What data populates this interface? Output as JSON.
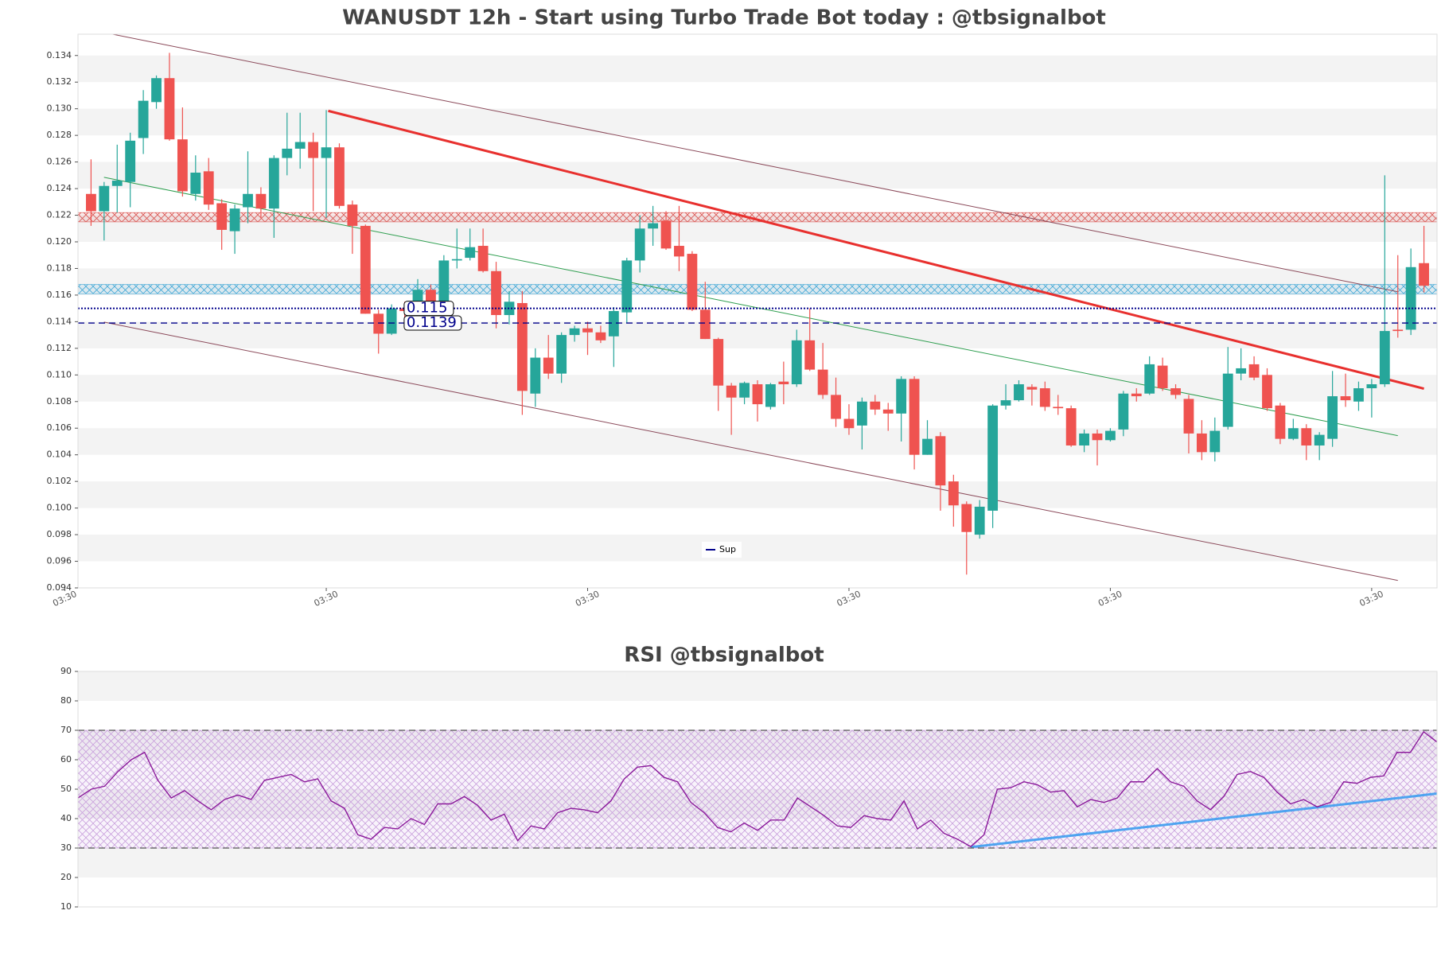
{
  "chart_data": [
    {
      "type": "candlestick",
      "title": "WANUSDT 12h - Start using Turbo Trade Bot today : @tbsignalbot",
      "open": [
        0.1236,
        0.1223,
        0.1242,
        0.1245,
        0.1278,
        0.1305,
        0.1323,
        0.1277,
        0.1236,
        0.1253,
        0.1229,
        0.1208,
        0.1226,
        0.1236,
        0.1225,
        0.1263,
        0.127,
        0.1275,
        0.1263,
        0.1271,
        0.1228,
        0.1212,
        0.1146,
        0.1131,
        0.115,
        0.115,
        0.1164,
        0.1155,
        0.1186,
        0.1188,
        0.1197,
        0.1178,
        0.1145,
        0.1154,
        0.1086,
        0.1113,
        0.1101,
        0.113,
        0.1135,
        0.1132,
        0.1129,
        0.1147,
        0.1186,
        0.121,
        0.1216,
        0.1197,
        0.1191,
        0.1149,
        0.1127,
        0.1092,
        0.1083,
        0.1093,
        0.1076,
        0.1095,
        0.1093,
        0.1126,
        0.1104,
        0.1085,
        0.1067,
        0.1062,
        0.108,
        0.1074,
        0.1071,
        0.1097,
        0.104,
        0.1054,
        0.102,
        0.1003,
        0.098,
        0.0998,
        0.1077,
        0.1081,
        0.1091,
        0.109,
        0.1076,
        0.1075,
        0.1047,
        0.1056,
        0.1051,
        0.1059,
        0.1086,
        0.1086,
        0.1107,
        0.109,
        0.1082,
        0.1056,
        0.1042,
        0.1061,
        0.1101,
        0.1108,
        0.11,
        0.1077,
        0.1052,
        0.106,
        0.1047,
        0.1052,
        0.1084,
        0.108,
        0.109,
        0.1093,
        0.1134,
        0.1134,
        0.1184
      ],
      "high": [
        0.1262,
        0.1245,
        0.1273,
        0.1282,
        0.1314,
        0.1325,
        0.1342,
        0.1301,
        0.1265,
        0.1263,
        0.1232,
        0.1228,
        0.1268,
        0.1241,
        0.1265,
        0.1297,
        0.1297,
        0.1282,
        0.1299,
        0.1274,
        0.1231,
        0.1213,
        0.1149,
        0.1153,
        0.1155,
        0.1172,
        0.1168,
        0.119,
        0.121,
        0.121,
        0.121,
        0.1185,
        0.1163,
        0.1163,
        0.112,
        0.113,
        0.1132,
        0.1137,
        0.114,
        0.1137,
        0.1151,
        0.1188,
        0.122,
        0.1227,
        0.1223,
        0.1227,
        0.1193,
        0.117,
        0.1128,
        0.1094,
        0.1095,
        0.1096,
        0.1094,
        0.111,
        0.1134,
        0.115,
        0.1124,
        0.1098,
        0.1078,
        0.1083,
        0.1085,
        0.1079,
        0.1099,
        0.1099,
        0.1066,
        0.1057,
        0.1025,
        0.1005,
        0.1006,
        0.1078,
        0.1093,
        0.1096,
        0.1093,
        0.1095,
        0.1085,
        0.1077,
        0.1059,
        0.1059,
        0.106,
        0.1088,
        0.109,
        0.1114,
        0.1113,
        0.1093,
        0.1085,
        0.1066,
        0.1068,
        0.1121,
        0.112,
        0.1114,
        0.1105,
        0.1079,
        0.1067,
        0.1063,
        0.1057,
        0.1103,
        0.1101,
        0.1095,
        0.1097,
        0.125,
        0.119,
        0.1195,
        0.1212
      ],
      "low": [
        0.1212,
        0.1201,
        0.1222,
        0.1226,
        0.1266,
        0.13,
        0.1276,
        0.1234,
        0.1231,
        0.1224,
        0.1194,
        0.1191,
        0.1214,
        0.1218,
        0.1203,
        0.125,
        0.1255,
        0.1223,
        0.1218,
        0.1225,
        0.1191,
        0.1146,
        0.1116,
        0.113,
        0.1137,
        0.1148,
        0.1152,
        0.1152,
        0.118,
        0.1186,
        0.1177,
        0.1135,
        0.1138,
        0.107,
        0.1076,
        0.1097,
        0.1094,
        0.1125,
        0.1115,
        0.1124,
        0.1106,
        0.1139,
        0.1177,
        0.1197,
        0.1194,
        0.1178,
        0.1148,
        0.1127,
        0.1073,
        0.1055,
        0.1078,
        0.1065,
        0.1074,
        0.1078,
        0.1091,
        0.1103,
        0.1082,
        0.1061,
        0.1055,
        0.1044,
        0.107,
        0.1058,
        0.105,
        0.1029,
        0.104,
        0.0998,
        0.0986,
        0.095,
        0.0977,
        0.0985,
        0.1074,
        0.108,
        0.1077,
        0.1073,
        0.107,
        0.1046,
        0.1042,
        0.1032,
        0.105,
        0.1054,
        0.108,
        0.1085,
        0.1088,
        0.1082,
        0.1041,
        0.1036,
        0.1035,
        0.1059,
        0.1096,
        0.1096,
        0.1073,
        0.1048,
        0.1051,
        0.1036,
        0.1036,
        0.1046,
        0.1076,
        0.1073,
        0.1068,
        0.1091,
        0.1128,
        0.113,
        0.1162
      ],
      "close": [
        0.1223,
        0.1242,
        0.1246,
        0.1276,
        0.1306,
        0.1323,
        0.1277,
        0.1238,
        0.1252,
        0.1228,
        0.1209,
        0.1225,
        0.1236,
        0.1225,
        0.1263,
        0.127,
        0.1275,
        0.1263,
        0.1271,
        0.1227,
        0.1212,
        0.1146,
        0.1131,
        0.115,
        0.1148,
        0.1164,
        0.1155,
        0.1186,
        0.1187,
        0.1196,
        0.1178,
        0.1145,
        0.1155,
        0.1088,
        0.1113,
        0.1101,
        0.113,
        0.1135,
        0.1132,
        0.1126,
        0.1148,
        0.1186,
        0.121,
        0.1214,
        0.1195,
        0.1189,
        0.1149,
        0.1127,
        0.1092,
        0.1083,
        0.1094,
        0.1078,
        0.1093,
        0.1093,
        0.1126,
        0.1104,
        0.1085,
        0.1067,
        0.106,
        0.108,
        0.1074,
        0.1071,
        0.1097,
        0.104,
        0.1052,
        0.1017,
        0.1002,
        0.0982,
        0.1001,
        0.1077,
        0.1081,
        0.1093,
        0.1089,
        0.1076,
        0.1075,
        0.1047,
        0.1056,
        0.1051,
        0.1058,
        0.1086,
        0.1084,
        0.1108,
        0.109,
        0.1085,
        0.1056,
        0.1042,
        0.1058,
        0.1101,
        0.1105,
        0.1098,
        0.1075,
        0.1052,
        0.106,
        0.1047,
        0.1055,
        0.1084,
        0.1081,
        0.109,
        0.1093,
        0.1133,
        0.1133,
        0.1181,
        0.1167
      ],
      "up_color": "#26a69a",
      "down_color": "#ef5350",
      "xlim": [
        -1,
        103
      ],
      "xticks": [
        {
          "value": -2,
          "label": "03:30"
        },
        {
          "value": 18,
          "label": "03:30"
        },
        {
          "value": 38,
          "label": "03:30"
        },
        {
          "value": 58,
          "label": "03:30"
        },
        {
          "value": 78,
          "label": "03:30"
        },
        {
          "value": 98,
          "label": "03:30"
        }
      ],
      "ylim": [
        0.094,
        0.1356
      ],
      "yticks": [
        0.094,
        0.096,
        0.098,
        {
          "value": 0.1,
          "label": "0.100"
        },
        0.102,
        0.104,
        0.106,
        0.108,
        {
          "value": 0.11,
          "label": "0.110"
        },
        0.112,
        0.114,
        0.116,
        0.118,
        {
          "value": 0.12,
          "label": "0.120"
        },
        0.122,
        0.124,
        0.126,
        0.128,
        {
          "value": 0.13,
          "label": "0.130"
        },
        0.132,
        0.134
      ],
      "grid": true,
      "zones": [
        {
          "range": [
            0.1215,
            0.1222
          ],
          "color": "#d9534f"
        },
        {
          "range": [
            0.1161,
            0.1168
          ],
          "color": "#3fa7d6"
        }
      ],
      "levels": [
        {
          "value": 0.115,
          "style": "dotted",
          "color": "#00008b",
          "show_value": true
        },
        {
          "value": 0.1139,
          "style": "dashed",
          "color": "#00008b",
          "show_value": true,
          "name": "Sup"
        }
      ],
      "lines": [
        {
          "x": [
            0.99,
            100
          ],
          "values": [
            0.13573,
            0.11625
          ],
          "color": "#8b4a5a",
          "width": 1
        },
        {
          "x": [
            0.99,
            100
          ],
          "values": [
            0.11397,
            0.09456
          ],
          "color": "#8b4a5a",
          "width": 1
        },
        {
          "x": [
            0.99,
            100
          ],
          "values": [
            0.12485,
            0.10544
          ],
          "color": "#2e9e4f",
          "width": 1
        },
        {
          "x": [
            18.15,
            102
          ],
          "values": [
            0.12984,
            0.10897
          ],
          "color": "#e8302e",
          "width": 3
        }
      ],
      "legend": "lower center"
    },
    {
      "type": "line",
      "title": "RSI @tbsignalbot",
      "values": [
        47,
        50,
        51,
        56,
        60,
        62.5,
        53,
        47,
        49.5,
        46,
        43,
        46.5,
        48,
        46.5,
        53,
        54,
        55,
        52.5,
        53.5,
        46,
        43.5,
        34.5,
        33,
        37,
        36.5,
        40,
        38,
        45,
        45,
        47.5,
        44.5,
        39.5,
        41.5,
        32.5,
        37.5,
        36.5,
        42,
        43.5,
        43,
        42,
        46,
        53.5,
        57.5,
        58,
        54,
        52.5,
        45.5,
        42,
        37,
        35.5,
        38.5,
        36,
        39.5,
        39.5,
        47,
        44,
        41,
        37.5,
        37,
        41,
        40,
        39.5,
        46,
        36.5,
        39.5,
        35,
        33,
        30.5,
        34.5,
        50,
        50.5,
        52.5,
        51.5,
        49,
        49.5,
        44,
        46.5,
        45.5,
        47,
        52.5,
        52.5,
        57,
        52.5,
        51,
        46,
        43,
        47.5,
        55,
        56,
        54,
        49,
        45,
        46.5,
        44,
        45.5,
        52.5,
        52,
        54,
        54.5,
        62.5,
        62.5,
        69.5,
        66
      ],
      "color": "#8b1a9b",
      "xlim": [
        0,
        102
      ],
      "ylim": [
        10,
        90
      ],
      "yticks": [
        10,
        20,
        30,
        40,
        50,
        60,
        70,
        80,
        90
      ],
      "grid": true,
      "zones": [
        {
          "range": [
            30,
            70
          ],
          "color": "#c9a0dc"
        }
      ],
      "levels": [
        {
          "value": 70,
          "style": "dashed",
          "color": "#555555"
        },
        {
          "value": 30,
          "style": "dashed",
          "color": "#555555"
        }
      ],
      "lines": [
        {
          "x": [
            67,
            102
          ],
          "values": [
            30.3,
            48.5
          ],
          "color": "#4da3f0",
          "width": 3
        }
      ]
    }
  ]
}
